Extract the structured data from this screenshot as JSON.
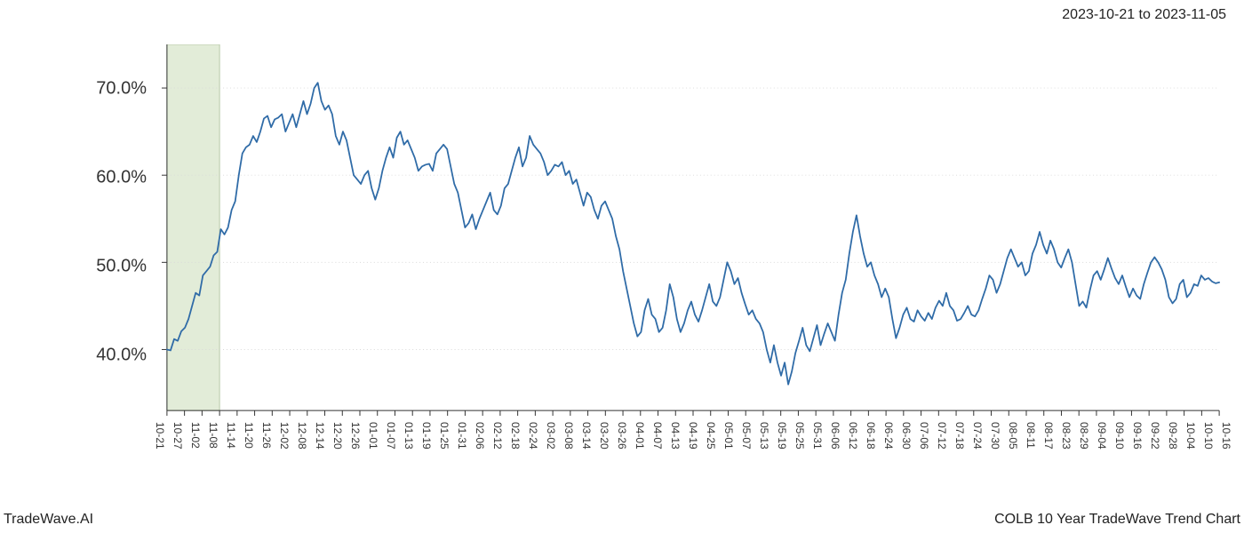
{
  "header": {
    "date_range": "2023-10-21 to 2023-11-05"
  },
  "footer": {
    "left": "TradeWave.AI",
    "right": "COLB 10 Year TradeWave Trend Chart"
  },
  "chart": {
    "type": "line",
    "background_color": "#ffffff",
    "grid_color": "#d9d9d9",
    "axis_color": "#333333",
    "line_color": "#2f6ba7",
    "line_width": 1.8,
    "highlight": {
      "fill": "#e2ecd8",
      "stroke": "#b8c9a8",
      "x_start_index": 0,
      "x_end_index": 3
    },
    "ylim": [
      33,
      75
    ],
    "y_ticks": [
      40.0,
      50.0,
      60.0,
      70.0
    ],
    "y_tick_labels": [
      "40.0%",
      "50.0%",
      "60.0%",
      "70.0%"
    ],
    "y_label_fontsize": 20,
    "x_tick_labels": [
      "10-21",
      "10-27",
      "11-02",
      "11-08",
      "11-14",
      "11-20",
      "11-26",
      "12-02",
      "12-08",
      "12-14",
      "12-20",
      "12-26",
      "01-01",
      "01-07",
      "01-13",
      "01-19",
      "01-25",
      "01-31",
      "02-06",
      "02-12",
      "02-18",
      "02-24",
      "03-02",
      "03-08",
      "03-14",
      "03-20",
      "03-26",
      "04-01",
      "04-07",
      "04-13",
      "04-19",
      "04-25",
      "05-01",
      "05-07",
      "05-13",
      "05-19",
      "05-25",
      "05-31",
      "06-06",
      "06-12",
      "06-18",
      "06-24",
      "06-30",
      "07-06",
      "07-12",
      "07-18",
      "07-24",
      "07-30",
      "08-05",
      "08-11",
      "08-17",
      "08-23",
      "08-29",
      "09-04",
      "09-10",
      "09-16",
      "09-22",
      "09-28",
      "10-04",
      "10-10",
      "10-16"
    ],
    "x_label_fontsize": 12,
    "values": [
      40.0,
      39.9,
      41.2,
      41.0,
      42.1,
      42.5,
      43.5,
      45.0,
      46.5,
      46.2,
      48.5,
      49.0,
      49.5,
      50.8,
      51.2,
      53.8,
      53.2,
      54.0,
      56.0,
      57.0,
      60.0,
      62.5,
      63.2,
      63.5,
      64.5,
      63.8,
      65.0,
      66.5,
      66.8,
      65.5,
      66.4,
      66.6,
      67.0,
      65.0,
      66.0,
      67.0,
      65.5,
      67.0,
      68.5,
      67.0,
      68.2,
      70.0,
      70.6,
      68.5,
      67.5,
      68.0,
      67.0,
      64.5,
      63.5,
      65.0,
      64.0,
      62.0,
      60.0,
      59.5,
      59.0,
      60.0,
      60.5,
      58.5,
      57.2,
      58.5,
      60.5,
      62.0,
      63.2,
      62.0,
      64.3,
      65.0,
      63.5,
      64.0,
      63.0,
      62.0,
      60.5,
      61.0,
      61.2,
      61.3,
      60.5,
      62.5,
      63.0,
      63.5,
      63.0,
      61.0,
      59.0,
      58.0,
      56.0,
      54.0,
      54.5,
      55.5,
      53.8,
      55.0,
      56.0,
      57.0,
      58.0,
      56.0,
      55.5,
      56.5,
      58.5,
      59.0,
      60.5,
      62.0,
      63.2,
      61.0,
      62.0,
      64.5,
      63.5,
      63.0,
      62.5,
      61.5,
      60.0,
      60.5,
      61.2,
      61.0,
      61.5,
      60.0,
      60.5,
      59.0,
      59.5,
      58.0,
      56.5,
      58.0,
      57.5,
      56.0,
      55.0,
      56.5,
      57.0,
      56.0,
      55.0,
      53.0,
      51.5,
      49.0,
      47.0,
      45.0,
      43.0,
      41.5,
      42.0,
      44.5,
      45.8,
      44.0,
      43.5,
      42.0,
      42.5,
      44.5,
      47.5,
      46.0,
      43.5,
      42.0,
      43.0,
      44.5,
      45.5,
      44.0,
      43.2,
      44.5,
      46.0,
      47.5,
      45.5,
      45.0,
      46.0,
      48.0,
      50.0,
      49.0,
      47.5,
      48.2,
      46.5,
      45.2,
      44.0,
      44.5,
      43.5,
      43.0,
      42.0,
      40.0,
      38.5,
      40.5,
      38.5,
      37.0,
      38.5,
      36.0,
      37.5,
      39.6,
      41.0,
      42.5,
      40.5,
      39.8,
      41.3,
      42.8,
      40.5,
      41.8,
      43.0,
      42.0,
      41.0,
      44.0,
      46.5,
      48.0,
      51.0,
      53.5,
      55.4,
      53.0,
      51.0,
      49.5,
      50.0,
      48.5,
      47.5,
      46.0,
      47.0,
      46.0,
      43.5,
      41.3,
      42.5,
      44.0,
      44.8,
      43.5,
      43.2,
      44.5,
      43.8,
      43.3,
      44.2,
      43.5,
      44.8,
      45.6,
      45.0,
      46.5,
      45.0,
      44.5,
      43.3,
      43.5,
      44.2,
      45.0,
      44.0,
      43.8,
      44.5,
      45.8,
      47.0,
      48.5,
      48.0,
      46.5,
      47.5,
      49.0,
      50.5,
      51.5,
      50.5,
      49.5,
      50.0,
      48.5,
      49.0,
      51.0,
      52.0,
      53.5,
      52.0,
      51.0,
      52.5,
      51.5,
      50.0,
      49.4,
      50.5,
      51.5,
      50.0,
      47.5,
      45.0,
      45.5,
      44.8,
      46.8,
      48.5,
      49.0,
      48.0,
      49.2,
      50.5,
      49.3,
      48.2,
      47.5,
      48.5,
      47.2,
      46.0,
      47.0,
      46.2,
      45.8,
      47.5,
      48.8,
      50.0,
      50.6,
      50.0,
      49.2,
      48.0,
      46.0,
      45.3,
      45.8,
      47.5,
      48.0,
      46.0,
      46.5,
      47.5,
      47.3,
      48.5,
      48.0,
      48.2,
      47.8,
      47.6,
      47.7
    ]
  }
}
